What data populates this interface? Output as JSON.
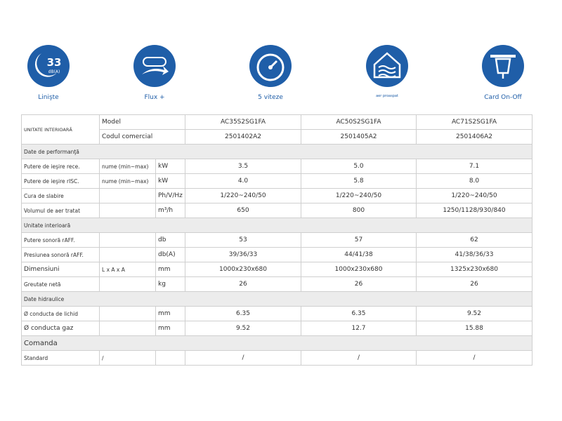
{
  "icons": [
    {
      "label": "Linişte",
      "badge": "33",
      "badge_unit": "dB(A)"
    },
    {
      "label": "Flux +"
    },
    {
      "label": "5 viteze"
    },
    {
      "label": "aer proaspat"
    },
    {
      "label": "Card On-Off"
    }
  ],
  "table": {
    "group": "UNITATE INTERIOARĂ",
    "header_rows": [
      {
        "label": "Model",
        "values": [
          "AC35S2SG1FA",
          "AC50S2SG1FA",
          "AC71S2SG1FA"
        ]
      },
      {
        "label": "Codul comercial",
        "values": [
          "2501402A2",
          "2501405A2",
          "2501406A2"
        ]
      }
    ],
    "rows": [
      {
        "section": "Date de performanţă"
      },
      {
        "label": "Putere de ieşire rece.",
        "note": "nume (min~max)",
        "unit": "kW",
        "values": [
          "3.5",
          "5.0",
          "7.1"
        ]
      },
      {
        "label": "Putere de ieşire rISC.",
        "note": "nume (min~max)",
        "unit": "kW",
        "values": [
          "4.0",
          "5.8",
          "8.0"
        ]
      },
      {
        "label": "Cura de slabire",
        "unit": "Ph/V/Hz",
        "values": [
          "1/220~240/50",
          "1/220~240/50",
          "1/220~240/50"
        ]
      },
      {
        "label": "Volumul de aer tratat",
        "unit": "m³/h",
        "values": [
          "650",
          "800",
          "1250/1128/930/840"
        ]
      },
      {
        "section": "Unitate interioară"
      },
      {
        "label": "Putere sonoră rAFF.",
        "unit": "db",
        "values": [
          "53",
          "57",
          "62"
        ]
      },
      {
        "label": "Presiunea sonoră rAFF.",
        "unit": "db(A)",
        "values": [
          "39/36/33",
          "44/41/38",
          "41/38/36/33"
        ]
      },
      {
        "label": "Dimensiuni",
        "note": "L x A x A",
        "unit": "mm",
        "values": [
          "1000x230x680",
          "1000x230x680",
          "1325x230x680"
        ]
      },
      {
        "label": "Greutate netă",
        "unit": "kg",
        "values": [
          "26",
          "26",
          "26"
        ]
      },
      {
        "section": "Date hidraulice"
      },
      {
        "label": "Ø conducta de lichid",
        "unit": "mm",
        "values": [
          "6.35",
          "6.35",
          "9.52"
        ]
      },
      {
        "label": "Ø conducta gaz",
        "unit": "mm",
        "values": [
          "9.52",
          "12.7",
          "15.88"
        ]
      },
      {
        "section": "Comanda"
      },
      {
        "label": "Standard",
        "note": "/",
        "values": [
          "/",
          "/",
          "/"
        ]
      }
    ]
  }
}
